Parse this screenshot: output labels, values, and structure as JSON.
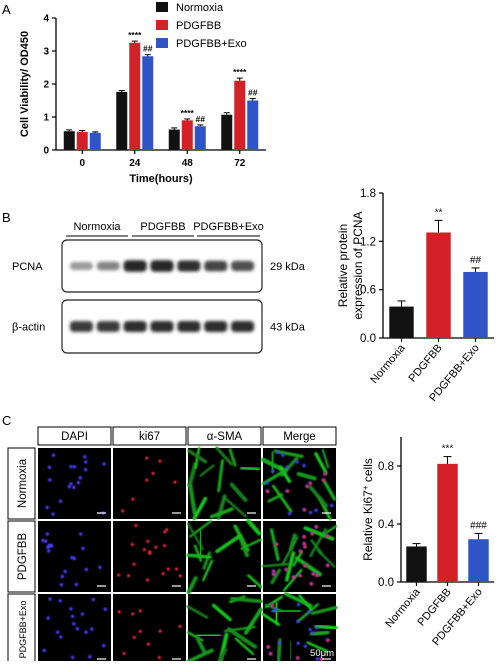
{
  "panel_a": {
    "letter": "A",
    "chart_data": {
      "type": "bar",
      "categories": [
        "0",
        "24",
        "48",
        "72"
      ],
      "xlabel": "Time(hours)",
      "ylabel": "Cell Viability/ OD450",
      "ylim": [
        0,
        4
      ],
      "yticks": [
        "0",
        "1",
        "2",
        "3",
        "4"
      ],
      "legend_position": "top-right",
      "series": [
        {
          "name": "Normoxia",
          "color": "#111111",
          "values": [
            0.57,
            1.76,
            0.62,
            1.07
          ],
          "errors": [
            0.04,
            0.04,
            0.05,
            0.06
          ]
        },
        {
          "name": "PDGFBB",
          "color": "#d42027",
          "values": [
            0.55,
            3.25,
            0.9,
            2.1
          ],
          "errors": [
            0.04,
            0.05,
            0.04,
            0.08
          ]
        },
        {
          "name": "PDGFBB+Exo",
          "color": "#2f54c8",
          "values": [
            0.52,
            2.84,
            0.72,
            1.5
          ],
          "errors": [
            0.03,
            0.05,
            0.04,
            0.06
          ]
        }
      ],
      "annotations": [
        {
          "category": "24",
          "series": 1,
          "text": "****"
        },
        {
          "category": "24",
          "series": 2,
          "text": "##"
        },
        {
          "category": "48",
          "series": 1,
          "text": "****"
        },
        {
          "category": "48",
          "series": 2,
          "text": "##"
        },
        {
          "category": "72",
          "series": 1,
          "text": "****"
        },
        {
          "category": "72",
          "series": 2,
          "text": "##"
        }
      ]
    }
  },
  "panel_b": {
    "letter": "B",
    "blot": {
      "groups": [
        "Normoxia",
        "PDGFBB",
        "PDGFBB+Exo"
      ],
      "rows": [
        {
          "label": "PCNA",
          "size": "29 kDa",
          "intensity": [
            0.35,
            0.45,
            0.9,
            0.9,
            0.85,
            0.75,
            0.7
          ]
        },
        {
          "label": "β-actin",
          "size": "43 kDa",
          "intensity": [
            0.8,
            0.8,
            0.85,
            0.85,
            0.85,
            0.85,
            0.85
          ]
        }
      ]
    },
    "chart_data": {
      "type": "bar",
      "categories": [
        "Normoxia",
        "PDGFBB",
        "PDGFBB+Exo"
      ],
      "values": [
        0.39,
        1.31,
        0.82
      ],
      "errors": [
        0.07,
        0.15,
        0.05
      ],
      "colors": [
        "#111111",
        "#d42027",
        "#2f54c8"
      ],
      "ylabel_line1": "Relative protein",
      "ylabel_line2": "expression of PCNA",
      "ylim": [
        0,
        1.8
      ],
      "yticks": [
        "0.0",
        "0.6",
        "1.2",
        "1.8"
      ],
      "annotations": [
        "",
        "**",
        "##"
      ]
    }
  },
  "panel_c": {
    "letter": "C",
    "columns": [
      "DAPI",
      "ki67",
      "α-SMA",
      "Merge"
    ],
    "rows": [
      "Normoxia",
      "PDGFBB",
      "PDGFBB+Exo"
    ],
    "scale_label": "50μm",
    "chart_data": {
      "type": "bar",
      "categories": [
        "Normoxia",
        "PDGFBB",
        "PDGFBB+Exo"
      ],
      "values": [
        0.245,
        0.815,
        0.295
      ],
      "errors": [
        0.02,
        0.05,
        0.04
      ],
      "colors": [
        "#111111",
        "#d42027",
        "#2f54c8"
      ],
      "ylabel_main": "Relative Ki67",
      "ylabel_sup": "+",
      "ylabel_suffix": " cells",
      "ylim": [
        0,
        1.0
      ],
      "yticks": [
        "0.0",
        "0.4",
        "0.8"
      ],
      "annotations": [
        "",
        "***",
        "###"
      ]
    }
  }
}
